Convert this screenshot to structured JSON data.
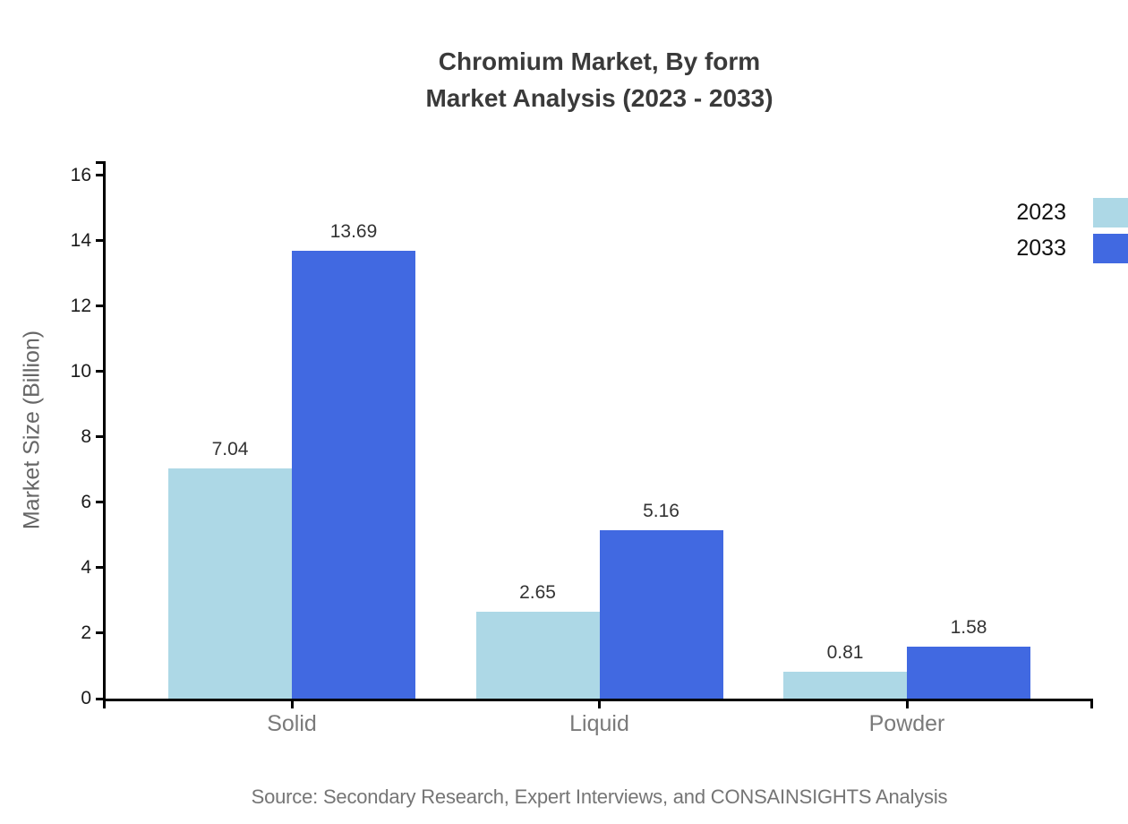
{
  "chart_data": {
    "type": "bar",
    "title_lines": [
      "Chromium Market, By form",
      "Market Analysis (2023 - 2033)"
    ],
    "title": "Chromium Market, By form Market Analysis (2023 - 2033)",
    "categories": [
      "Solid",
      "Liquid",
      "Powder"
    ],
    "series": [
      {
        "name": "2023",
        "color": "#add8e6",
        "values": [
          7.04,
          2.65,
          0.81
        ]
      },
      {
        "name": "2033",
        "color": "#4169e1",
        "values": [
          13.69,
          5.16,
          1.58
        ]
      }
    ],
    "xlabel": "",
    "ylabel": "Market Size (Billion)",
    "ylim": [
      0,
      16.43
    ],
    "yticks": [
      0,
      2,
      4,
      6,
      8,
      10,
      12,
      14,
      16
    ],
    "grid": false,
    "legend_position": "top-right",
    "value_labels": true,
    "source": "Source: Secondary Research, Expert Interviews, and CONSAINSIGHTS Analysis"
  }
}
